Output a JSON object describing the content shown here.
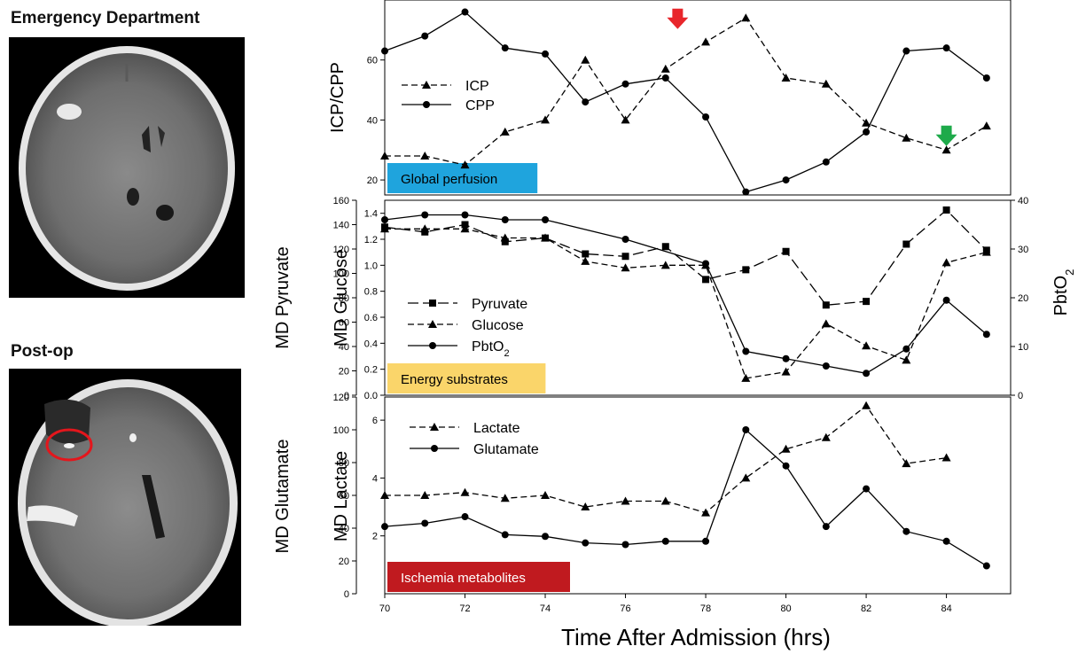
{
  "images": {
    "top_label": "Emergency Department",
    "bottom_label": "Post-op"
  },
  "chart_data": [
    {
      "type": "line",
      "ylabel": "ICP/CPP",
      "badge": "Global perfusion",
      "badge_color": "#1fa4dd",
      "ylim": [
        15,
        80
      ],
      "yticks": [
        20,
        40,
        60
      ],
      "x": [
        70,
        71,
        72,
        73,
        74,
        75,
        76,
        77,
        78,
        79,
        80,
        81,
        82,
        83,
        84,
        85
      ],
      "series": [
        {
          "name": "ICP",
          "marker": "triangle",
          "dash": "dashed",
          "points": [
            [
              70,
              28
            ],
            [
              71,
              28
            ],
            [
              72,
              25
            ],
            [
              73,
              36
            ],
            [
              74,
              40
            ],
            [
              75,
              60
            ],
            [
              76,
              40
            ],
            [
              77,
              57
            ],
            [
              78,
              66
            ],
            [
              79,
              74
            ],
            [
              80,
              54
            ],
            [
              81,
              52
            ],
            [
              82,
              39
            ],
            [
              83,
              34
            ],
            [
              84,
              30
            ],
            [
              85,
              38
            ]
          ]
        },
        {
          "name": "CPP",
          "marker": "circle",
          "dash": "solid",
          "points": [
            [
              70,
              63
            ],
            [
              71,
              68
            ],
            [
              72,
              76
            ],
            [
              73,
              64
            ],
            [
              74,
              62
            ],
            [
              75,
              46
            ],
            [
              76,
              52
            ],
            [
              77,
              54
            ],
            [
              78,
              41
            ],
            [
              79,
              16
            ],
            [
              80,
              20
            ],
            [
              81,
              26
            ],
            [
              82,
              36
            ],
            [
              83,
              63
            ],
            [
              84,
              64
            ],
            [
              85,
              54
            ]
          ]
        }
      ],
      "markers": [
        {
          "name": "red-arrow",
          "color": "#e8262b",
          "x": 77.3,
          "y": 73
        },
        {
          "name": "green-arrow",
          "color": "#1eaa4a",
          "x": 84,
          "y": 34
        }
      ]
    },
    {
      "type": "line",
      "ylabel_outer": "MD Pyruvate",
      "ylabel_inner": "MD Glucose",
      "ylabel_right": "PbtO",
      "ylabel_right_sub": "2",
      "badge": "Energy substrates",
      "badge_color": "#fad56a",
      "y_outer": {
        "lim": [
          0,
          160
        ],
        "ticks": [
          0,
          20,
          40,
          60,
          80,
          100,
          120,
          140,
          160
        ]
      },
      "y_inner": {
        "lim": [
          0,
          1.5
        ],
        "ticks": [
          "0.0",
          "0.2",
          "0.4",
          "0.6",
          "0.8",
          "1.0",
          "1.2",
          "1.4"
        ]
      },
      "y_right": {
        "lim": [
          0,
          40
        ],
        "ticks": [
          0,
          10,
          20,
          30,
          40
        ]
      },
      "series": [
        {
          "name": "Pyruvate",
          "marker": "square",
          "dash": "longdash",
          "axis": "outer",
          "points": [
            [
              70,
              138
            ],
            [
              71,
              134
            ],
            [
              72,
              140
            ],
            [
              73,
              126
            ],
            [
              74,
              129
            ],
            [
              75,
              116
            ],
            [
              76,
              114
            ],
            [
              77,
              122
            ],
            [
              78,
              95
            ],
            [
              79,
              103
            ],
            [
              80,
              118
            ],
            [
              81,
              74
            ],
            [
              82,
              77
            ],
            [
              83,
              124
            ],
            [
              84,
              152
            ],
            [
              85,
              119
            ]
          ]
        },
        {
          "name": "Glucose",
          "marker": "triangle",
          "dash": "dashed",
          "axis": "inner",
          "points": [
            [
              70,
              1.28
            ],
            [
              71,
              1.28
            ],
            [
              72,
              1.28
            ],
            [
              73,
              1.21
            ],
            [
              74,
              1.21
            ],
            [
              75,
              1.03
            ],
            [
              76,
              0.98
            ],
            [
              77,
              1.0
            ],
            [
              78,
              1.0
            ],
            [
              79,
              0.13
            ],
            [
              80,
              0.18
            ],
            [
              81,
              0.55
            ],
            [
              82,
              0.38
            ],
            [
              83,
              0.27
            ],
            [
              84,
              1.02
            ],
            [
              85,
              1.1
            ]
          ]
        },
        {
          "name": "PbtO",
          "name_sub": "2",
          "marker": "circle",
          "dash": "solid",
          "axis": "right",
          "points": [
            [
              70,
              36
            ],
            [
              71,
              37
            ],
            [
              72,
              37
            ],
            [
              73,
              36
            ],
            [
              74,
              36
            ],
            [
              75,
              null
            ],
            [
              76,
              32
            ],
            [
              77,
              null
            ],
            [
              78,
              27
            ],
            [
              79,
              9
            ],
            [
              80,
              7.5
            ],
            [
              81,
              6
            ],
            [
              82,
              4.5
            ],
            [
              83,
              9.5
            ],
            [
              84,
              19.5
            ],
            [
              85,
              12.5
            ]
          ]
        }
      ]
    },
    {
      "type": "line",
      "ylabel_outer": "MD Glutamate",
      "ylabel_inner": "MD Lactate",
      "badge": "Ischemia metabolites",
      "badge_color": "#c01a1f",
      "y_outer": {
        "lim": [
          0,
          120
        ],
        "ticks": [
          0,
          20,
          40,
          60,
          80,
          100,
          120
        ]
      },
      "y_inner": {
        "lim": [
          0,
          6.8
        ],
        "ticks": [
          2,
          4,
          6
        ]
      },
      "series": [
        {
          "name": "Lactate",
          "marker": "triangle",
          "dash": "dashed",
          "axis": "inner",
          "points": [
            [
              70,
              3.4
            ],
            [
              71,
              3.4
            ],
            [
              72,
              3.5
            ],
            [
              73,
              3.3
            ],
            [
              74,
              3.4
            ],
            [
              75,
              3.0
            ],
            [
              76,
              3.2
            ],
            [
              77,
              3.2
            ],
            [
              78,
              2.8
            ],
            [
              79,
              4.0
            ],
            [
              80,
              5.0
            ],
            [
              81,
              5.4
            ],
            [
              82,
              6.5
            ],
            [
              83,
              4.5
            ],
            [
              84,
              4.7
            ]
          ]
        },
        {
          "name": "Glutamate",
          "marker": "circle",
          "dash": "solid",
          "axis": "outer",
          "points": [
            [
              70,
              41
            ],
            [
              71,
              43
            ],
            [
              72,
              47
            ],
            [
              73,
              36
            ],
            [
              74,
              35
            ],
            [
              75,
              31
            ],
            [
              76,
              30
            ],
            [
              77,
              32
            ],
            [
              78,
              32
            ],
            [
              79,
              100
            ],
            [
              80,
              78
            ],
            [
              81,
              41
            ],
            [
              82,
              64
            ],
            [
              83,
              38
            ],
            [
              84,
              32
            ],
            [
              85,
              17
            ]
          ]
        }
      ]
    }
  ],
  "x_axis": {
    "label": "Time After Admission (hrs)",
    "ticks": [
      70,
      72,
      74,
      76,
      78,
      80,
      82,
      84
    ],
    "lim": [
      70,
      85.6
    ]
  }
}
